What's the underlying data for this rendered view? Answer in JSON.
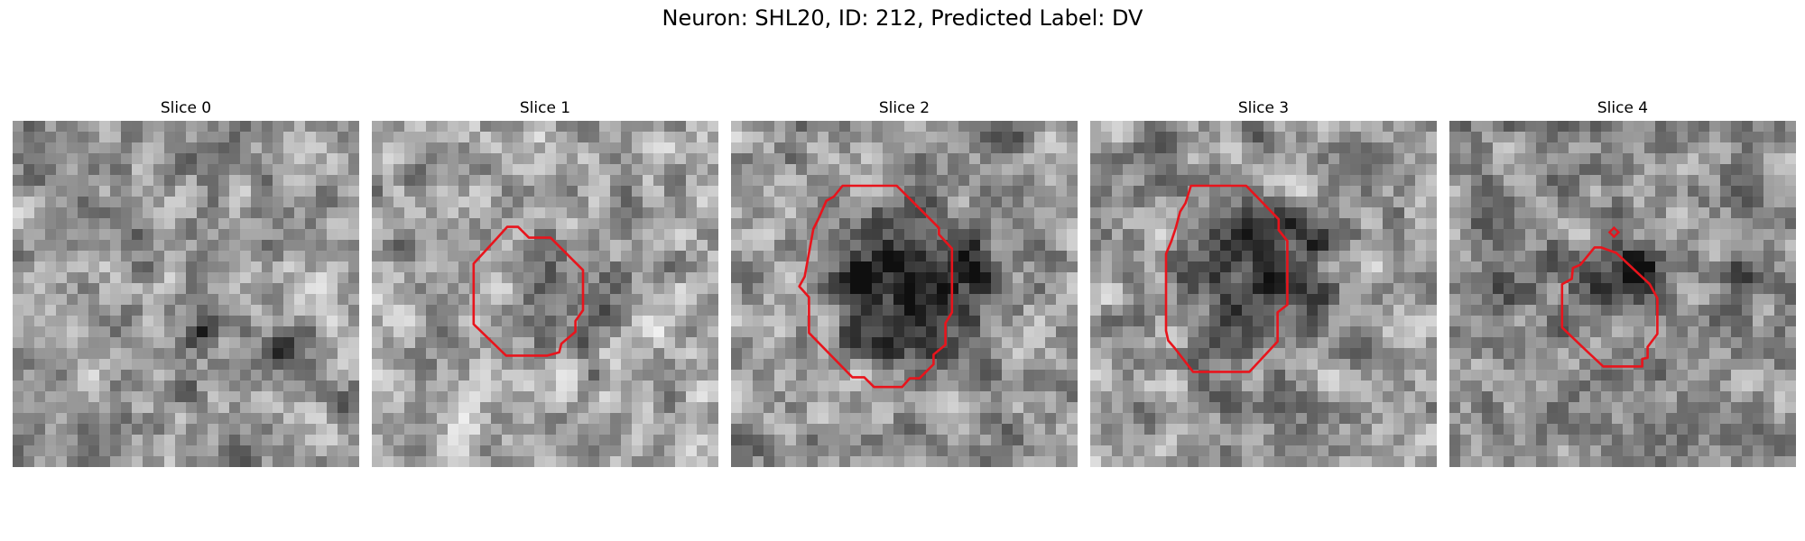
{
  "figure": {
    "title": "Neuron: SHL20, ID: 212, Predicted Label: DV"
  },
  "panels": [
    {
      "title": "Slice 0",
      "contour": false
    },
    {
      "title": "Slice 1",
      "contour": true
    },
    {
      "title": "Slice 2",
      "contour": true
    },
    {
      "title": "Slice 3",
      "contour": true
    },
    {
      "title": "Slice 4",
      "contour": true
    }
  ],
  "colors": {
    "contour": "#e8141c",
    "background": "#ffffff"
  }
}
